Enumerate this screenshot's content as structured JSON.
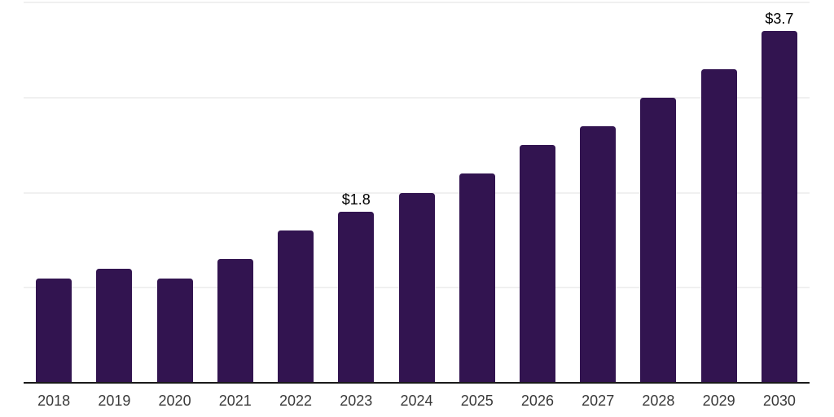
{
  "chart_data": {
    "type": "bar",
    "title": "",
    "xlabel": "",
    "ylabel": "",
    "categories": [
      "2018",
      "2019",
      "2020",
      "2021",
      "2022",
      "2023",
      "2024",
      "2025",
      "2026",
      "2027",
      "2028",
      "2029",
      "2030"
    ],
    "values": [
      1.1,
      1.2,
      1.1,
      1.3,
      1.6,
      1.8,
      2.0,
      2.2,
      2.5,
      2.7,
      3.0,
      3.3,
      3.7
    ],
    "data_labels": [
      {
        "category": "2023",
        "text": "$1.8"
      },
      {
        "category": "2030",
        "text": "$3.7"
      }
    ],
    "ylim": [
      0,
      4
    ],
    "gridline_values": [
      1,
      2,
      3,
      4
    ],
    "grid": "horizontal",
    "legend": "none"
  },
  "style": {
    "background_color": "#ffffff",
    "bar_color": "#321450",
    "grid_color": "#f0f0f0",
    "axis_line_color": "#1a1a1a",
    "tick_label_color": "#3a3a3a",
    "data_label_color": "#000000"
  }
}
